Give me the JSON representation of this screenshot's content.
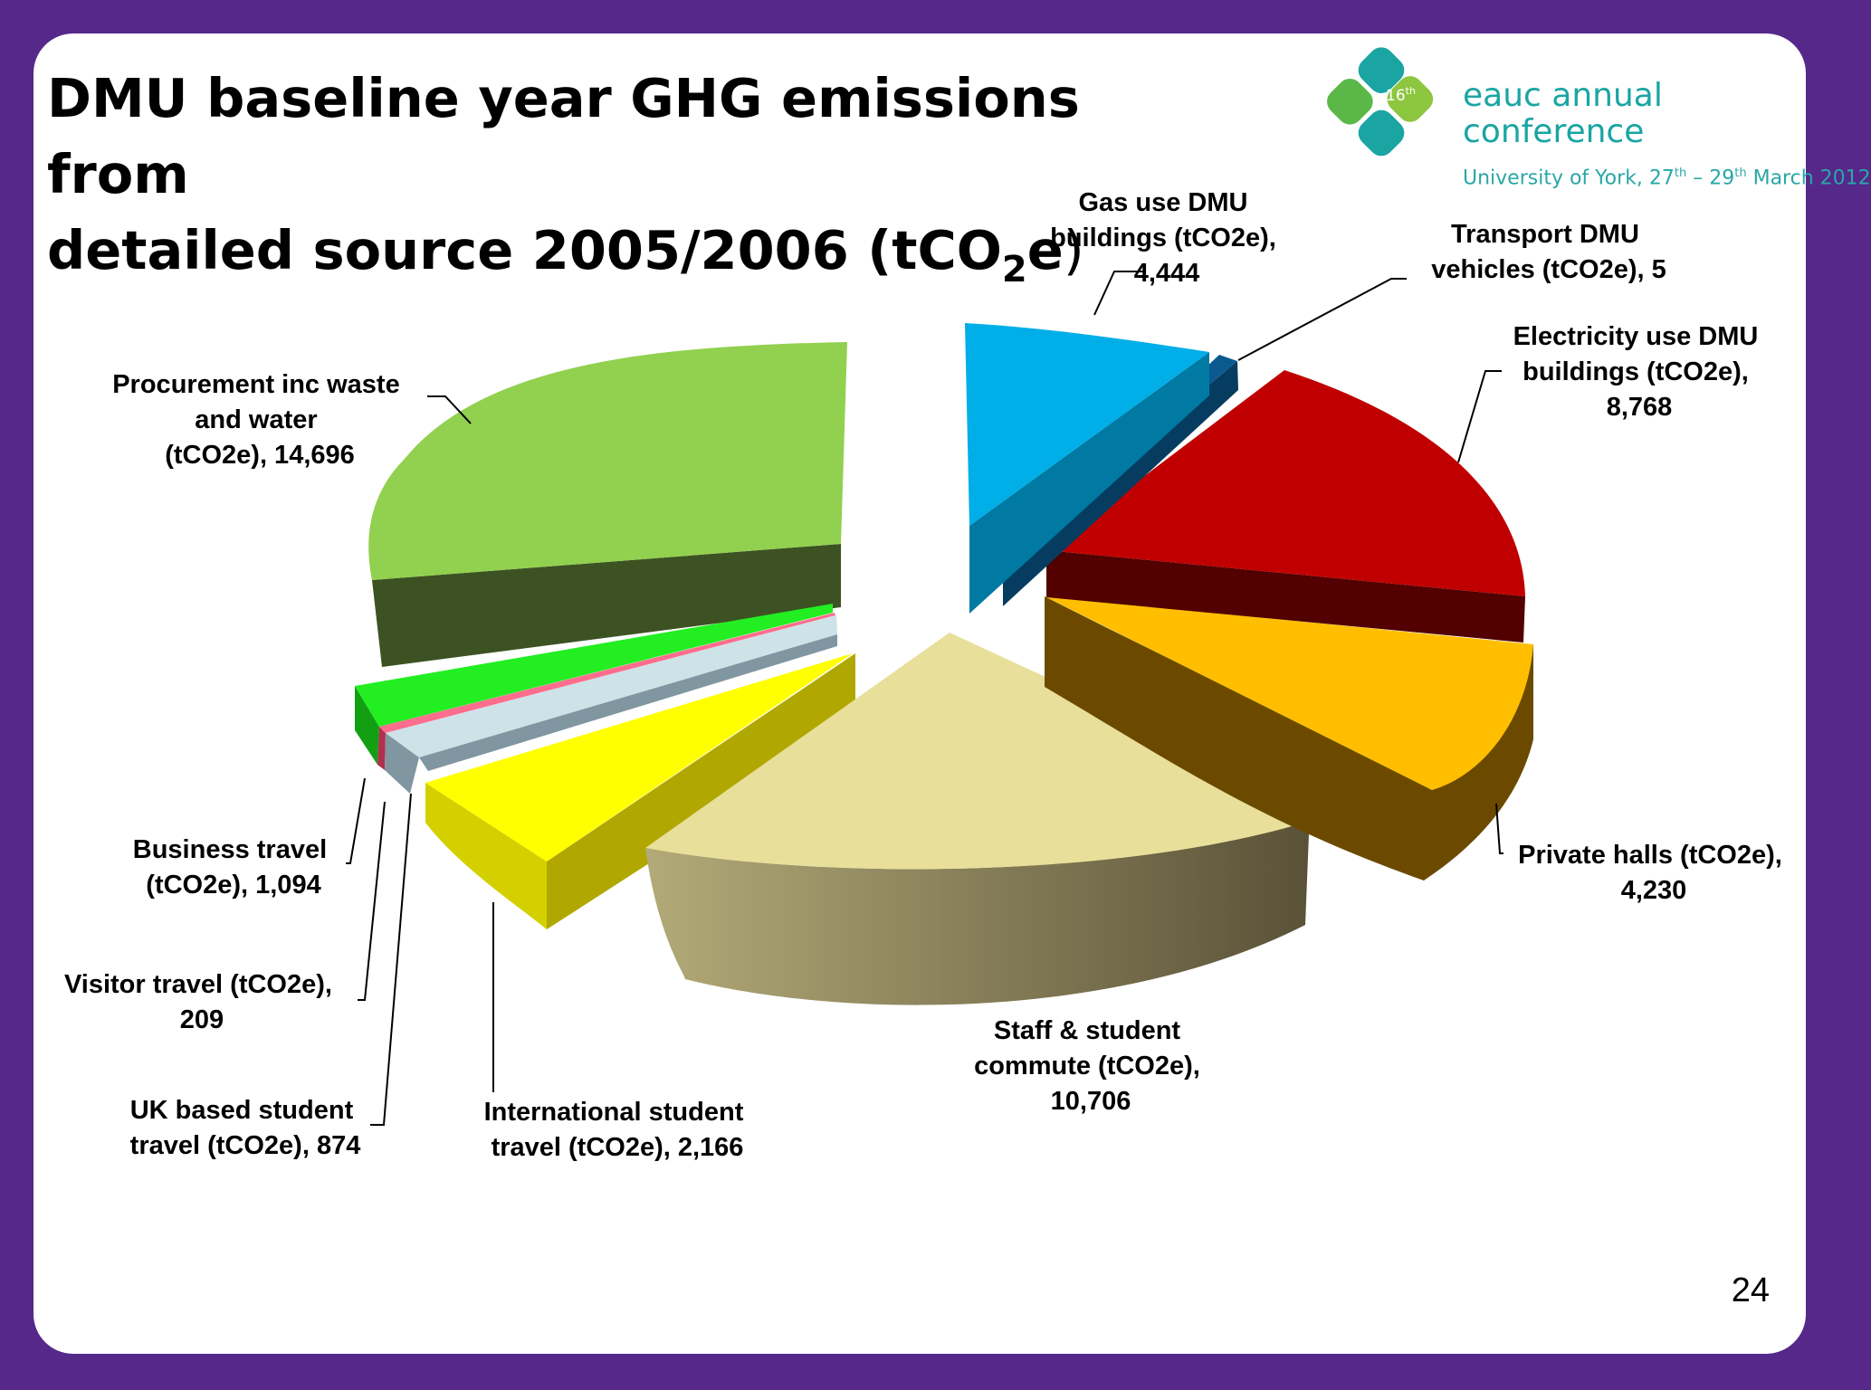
{
  "slide": {
    "title_line1": "DMU baseline year GHG emissions from",
    "title_line2_main": "detailed source 2005/2006 (tCO",
    "title_sub": "2",
    "title_after": "e",
    "title_paren": ")",
    "page_number": "24"
  },
  "logo": {
    "badge": "16",
    "badge_sup": "th",
    "line1": "eauc annual",
    "line2": "conference",
    "line3_a": "University of York, 27",
    "line3_sup1": "th",
    "line3_b": " – 29",
    "line3_sup2": "th",
    "line3_c": " March 2012",
    "colors": [
      "#1aa5a3",
      "#8dc63f",
      "#5bb848",
      "#2aa7a8"
    ]
  },
  "chart_data": {
    "type": "pie",
    "style": "3d-exploded",
    "title": "DMU baseline year GHG emissions from detailed source 2005/2006 (tCO2e)",
    "slices": [
      {
        "name": "Gas use DMU buildings (tCO2e)",
        "value": 4444,
        "label_lines": [
          "Gas use DMU",
          "buildings (tCO2e),",
          "4,444"
        ],
        "color": "#00aee8",
        "side": "#007aa3"
      },
      {
        "name": "Transport DMU vehicles (tCO2e)",
        "value": 5,
        "label_lines": [
          "Transport DMU",
          "vehicles (tCO2e), 5"
        ],
        "color": "#0a5a8f",
        "side": "#063c60"
      },
      {
        "name": "Electricity use DMU buildings (tCO2e)",
        "value": 8768,
        "label_lines": [
          "Electricity use DMU",
          "buildings (tCO2e),",
          "8,768"
        ],
        "color": "#c00000",
        "side": "#520000"
      },
      {
        "name": "Private halls (tCO2e)",
        "value": 4230,
        "label_lines": [
          "Private halls (tCO2e),",
          "4,230"
        ],
        "color": "#ffbf00",
        "side": "#6b4a00"
      },
      {
        "name": "Staff & student commute (tCO2e)",
        "value": 10706,
        "label_lines": [
          "Staff & student",
          "commute (tCO2e),",
          "10,706"
        ],
        "color": "#e8df9a",
        "side": "#8c7f50"
      },
      {
        "name": "International student travel (tCO2e)",
        "value": 2166,
        "label_lines": [
          "International student",
          "travel (tCO2e), 2,166"
        ],
        "color": "#ffff00",
        "side": "#b0a800"
      },
      {
        "name": "UK based student travel (tCO2e)",
        "value": 874,
        "label_lines": [
          "UK based student",
          "travel (tCO2e), 874"
        ],
        "color": "#cde3e8",
        "side": "#8096a0"
      },
      {
        "name": "Visitor travel (tCO2e)",
        "value": 209,
        "label_lines": [
          "Visitor travel (tCO2e),",
          "209"
        ],
        "color": "#ff6d8e",
        "side": "#b03050"
      },
      {
        "name": "Business travel (tCO2e)",
        "value": 1094,
        "label_lines": [
          "Business travel",
          "(tCO2e), 1,094"
        ],
        "color": "#22ee22",
        "side": "#12a012"
      },
      {
        "name": "Procurement inc waste and water (tCO2e)",
        "value": 14696,
        "label_lines": [
          "Procurement inc waste",
          "and water",
          "(tCO2e), 14,696"
        ],
        "color": "#92d050",
        "side": "#3d5222"
      }
    ]
  }
}
